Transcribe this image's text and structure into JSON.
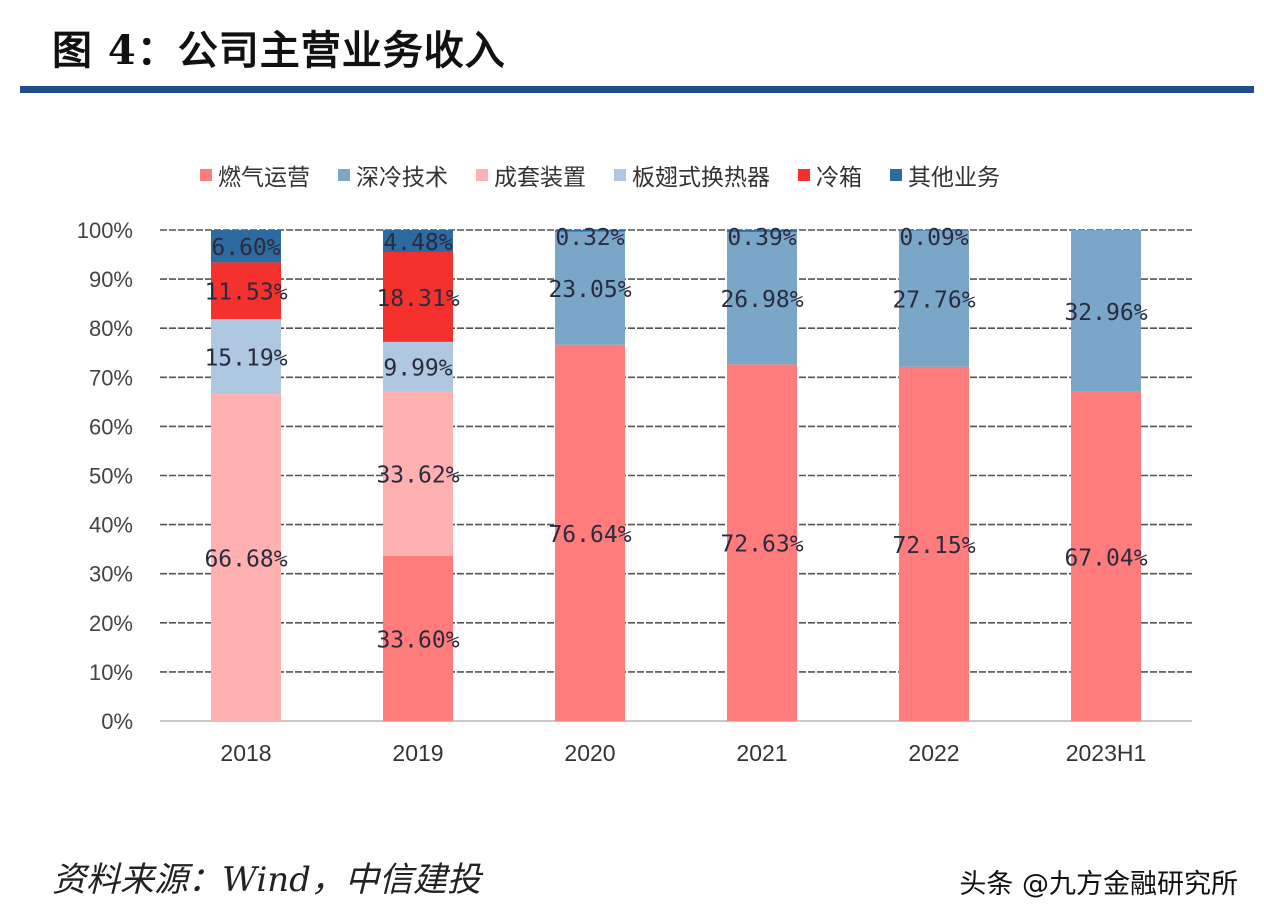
{
  "header": {
    "title": "图 4：公司主营业务收入"
  },
  "footer": {
    "source": "资料来源：Wind，中信建投",
    "watermark": "头条 @九方金融研究所"
  },
  "chart_data": {
    "type": "bar",
    "stacked": true,
    "title": "图 4：公司主营业务收入",
    "xlabel": "",
    "ylabel": "",
    "ylim": [
      0,
      100
    ],
    "yticks": [
      "0%",
      "10%",
      "20%",
      "30%",
      "40%",
      "50%",
      "60%",
      "70%",
      "80%",
      "90%",
      "100%"
    ],
    "grid": true,
    "legend_position": "top",
    "categories": [
      "2018",
      "2019",
      "2020",
      "2021",
      "2022",
      "2023H1"
    ],
    "series": [
      {
        "name": "燃气运营",
        "color": "#ff7c7c",
        "values": [
          0,
          33.6,
          76.64,
          72.63,
          72.15,
          67.04
        ],
        "labels": [
          "",
          "33.60%",
          "76.64%",
          "72.63%",
          "72.15%",
          "67.04%"
        ]
      },
      {
        "name": "深冷技术",
        "color": "#7aa6c8",
        "values": [
          0,
          0,
          23.05,
          26.98,
          27.76,
          32.96
        ],
        "labels": [
          "",
          "",
          "23.05%",
          "26.98%",
          "27.76%",
          "32.96%"
        ]
      },
      {
        "name": "成套装置",
        "color": "#ffb0b0",
        "values": [
          66.68,
          33.62,
          0,
          0,
          0,
          0
        ],
        "labels": [
          "66.68%",
          "33.62%",
          "",
          "",
          "",
          ""
        ]
      },
      {
        "name": "板翅式换热器",
        "color": "#adc8e0",
        "values": [
          15.19,
          9.99,
          0,
          0,
          0,
          0
        ],
        "labels": [
          "15.19%",
          "9.99%",
          "",
          "",
          "",
          ""
        ]
      },
      {
        "name": "冷箱",
        "color": "#f5312d",
        "values": [
          11.53,
          18.31,
          0,
          0,
          0,
          0
        ],
        "labels": [
          "11.53%",
          "18.31%",
          "",
          "",
          "",
          ""
        ]
      },
      {
        "name": "其他业务",
        "color": "#2c6aa0",
        "values": [
          6.6,
          4.48,
          0.32,
          0.39,
          0.09,
          0
        ],
        "labels": [
          "6.60%",
          "4.48%",
          "0.32%",
          "0.39%",
          "0.09%",
          ""
        ]
      }
    ]
  }
}
